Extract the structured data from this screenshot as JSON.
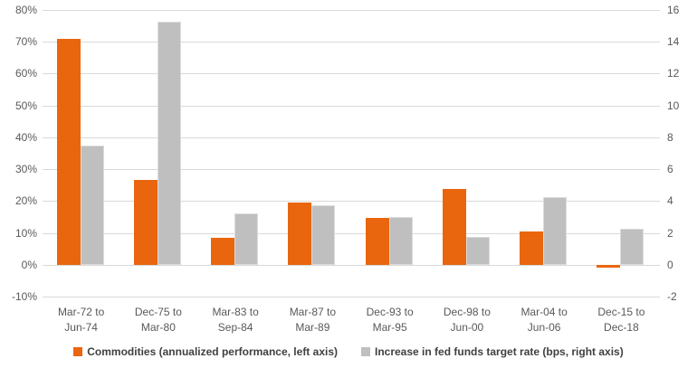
{
  "chart_data": {
    "type": "bar",
    "title": "",
    "xlabel": "",
    "ylabel_left": "Commodities annualized performance (%)",
    "ylabel_right": "Increase in fed funds target rate (bps)",
    "grid": true,
    "legend_position": "bottom",
    "categories": [
      [
        "Mar-72 to",
        "Jun-74"
      ],
      [
        "Dec-75 to",
        "Mar-80"
      ],
      [
        "Mar-83 to",
        "Sep-84"
      ],
      [
        "Mar-87 to",
        "Mar-89"
      ],
      [
        "Dec-93 to",
        "Mar-95"
      ],
      [
        "Dec-98 to",
        "Jun-00"
      ],
      [
        "Mar-04 to",
        "Jun-06"
      ],
      [
        "Dec-15 to",
        "Dec-18"
      ]
    ],
    "series": [
      {
        "name": "Commodities (annualized performance, left axis)",
        "axis": "left",
        "unit": "%",
        "color": "#e9660e",
        "values": [
          71,
          26.5,
          8.4,
          19.6,
          14.8,
          23.8,
          10.5,
          -1
        ]
      },
      {
        "name": "Increase in fed funds target rate (bps, right axis)",
        "axis": "right",
        "unit": "bps",
        "color": "#bfbfbf",
        "values": [
          7.5,
          15.25,
          3.25,
          3.75,
          3.0,
          1.75,
          4.25,
          2.25
        ]
      }
    ],
    "left_axis": {
      "min": -10,
      "max": 80,
      "step": 10,
      "ticks": [
        "80%",
        "70%",
        "60%",
        "50%",
        "40%",
        "30%",
        "20%",
        "10%",
        "0%",
        "-10%"
      ]
    },
    "right_axis": {
      "min": -2,
      "max": 16,
      "step": 2,
      "ticks": [
        "16",
        "14",
        "12",
        "10",
        "8",
        "6",
        "4",
        "2",
        "0",
        "-2"
      ]
    },
    "colors": {
      "gridline": "#d9d9d9",
      "tick_text": "#595959",
      "legend_text": "#404040",
      "background": "#ffffff"
    }
  }
}
